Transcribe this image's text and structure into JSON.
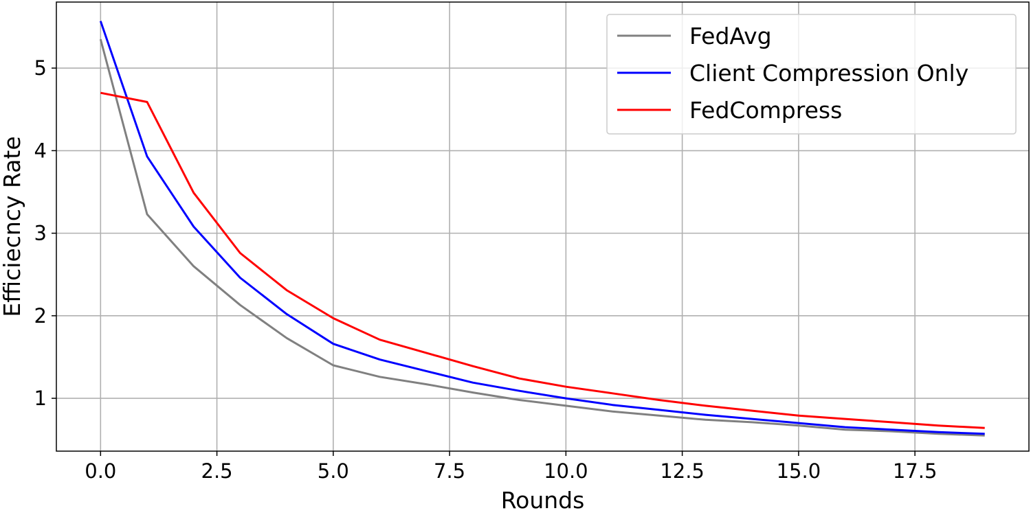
{
  "chart_data": {
    "type": "line",
    "title": "",
    "xlabel": "Rounds",
    "ylabel": "Efficiecncy Rate",
    "xlim": [
      -0.95,
      19.95
    ],
    "ylim": [
      0.36,
      5.8
    ],
    "xticks": [
      0.0,
      2.5,
      5.0,
      7.5,
      10.0,
      12.5,
      15.0,
      17.5
    ],
    "xtick_labels": [
      "0.0",
      "2.5",
      "5.0",
      "7.5",
      "10.0",
      "12.5",
      "15.0",
      "17.5"
    ],
    "yticks": [
      1,
      2,
      3,
      4,
      5
    ],
    "ytick_labels": [
      "1",
      "2",
      "3",
      "4",
      "5"
    ],
    "grid": true,
    "legend_position": "top-right",
    "x": [
      0,
      1,
      2,
      3,
      4,
      5,
      6,
      7,
      8,
      9,
      10,
      11,
      12,
      13,
      14,
      15,
      16,
      17,
      18,
      19
    ],
    "series": [
      {
        "name": "FedAvg",
        "color": "#808080",
        "values": [
          5.35,
          3.23,
          2.6,
          2.13,
          1.73,
          1.4,
          1.26,
          1.17,
          1.07,
          0.98,
          0.91,
          0.84,
          0.79,
          0.74,
          0.71,
          0.67,
          0.62,
          0.6,
          0.57,
          0.55
        ]
      },
      {
        "name": "Client Compression Only",
        "color": "#0000ff",
        "values": [
          5.57,
          3.93,
          3.08,
          2.46,
          2.02,
          1.66,
          1.47,
          1.33,
          1.19,
          1.09,
          1.0,
          0.92,
          0.86,
          0.8,
          0.75,
          0.7,
          0.65,
          0.62,
          0.59,
          0.57
        ]
      },
      {
        "name": "FedCompress",
        "color": "#ff0000",
        "values": [
          4.7,
          4.59,
          3.49,
          2.76,
          2.31,
          1.97,
          1.71,
          1.55,
          1.39,
          1.24,
          1.14,
          1.06,
          0.98,
          0.91,
          0.85,
          0.79,
          0.75,
          0.71,
          0.67,
          0.64
        ]
      }
    ]
  }
}
